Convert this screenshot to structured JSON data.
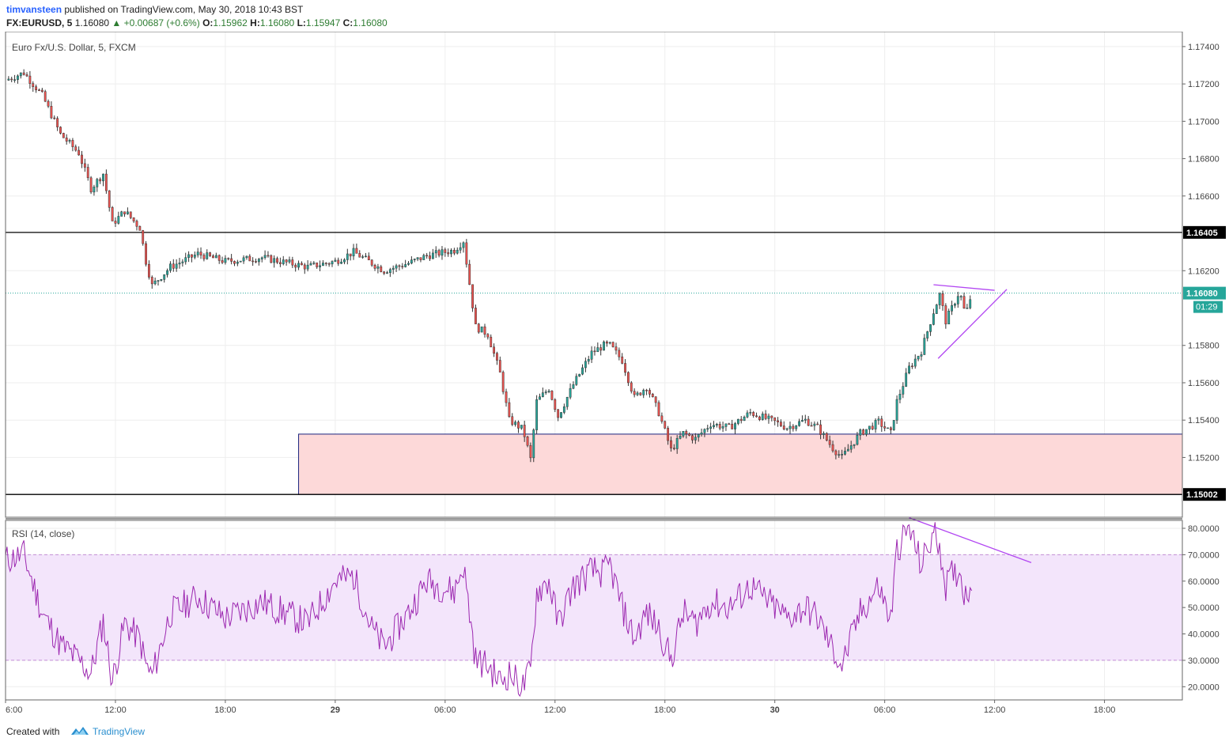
{
  "header": {
    "author": "timvansteen",
    "published": "published on TradingView.com, May 30, 2018 10:43 BST",
    "symbol": "FX:EURUSD, 5",
    "last": "1.16080",
    "change": "+0.00687 (+0.6%)",
    "o_label": "O:",
    "o_value": "1.15962",
    "h_label": "H:",
    "h_value": "1.16080",
    "l_label": "L:",
    "l_value": "1.15947",
    "c_label": "C:",
    "c_value": "1.16080"
  },
  "footer": {
    "created_with": "Created with",
    "brand": "TradingView"
  },
  "colors": {
    "up": "#26a69a",
    "down": "#ef5350",
    "wick": "#333333",
    "rsi": "#9c27b0",
    "rsi_band": "#f3e5fb",
    "zone": "#fdd9d9",
    "zone_border": "#1a237e",
    "trend": "#b246f2"
  },
  "chart_data": [
    {
      "type": "candlestick",
      "title": "Euro Fx/U.S. Dollar, 5, FXCM",
      "ylim": [
        1.1488,
        1.1748
      ],
      "y_ticks": [
        "1.17400",
        "1.17200",
        "1.17000",
        "1.16800",
        "1.16600",
        "1.16200",
        "1.15800",
        "1.15600",
        "1.15400",
        "1.15200"
      ],
      "horizontal_levels": [
        {
          "label": "1.16405",
          "value": 1.16405
        },
        {
          "label": "1.15002",
          "value": 1.15002
        }
      ],
      "last_price": {
        "label": "1.16080",
        "value": 1.1608,
        "countdown": "01:29"
      },
      "support_zone": {
        "from": "May 28 22:00",
        "y_low": 1.15002,
        "y_high": 1.15325
      },
      "triangle": {
        "upper": [
          [
            "May 30 08:40",
            1.16125
          ],
          [
            "May 30 12:00",
            1.16095
          ]
        ],
        "lower": [
          [
            "May 30 08:55",
            1.1573
          ],
          [
            "May 30 12:40",
            1.161
          ]
        ]
      },
      "anchors": [
        [
          "May 28 06:00",
          1.1722
        ],
        [
          "May 28 07:00",
          1.1726
        ],
        [
          "May 28 08:00",
          1.1714
        ],
        [
          "May 28 09:00",
          1.1693
        ],
        [
          "May 28 10:00",
          1.1683
        ],
        [
          "May 28 10:40",
          1.1664
        ],
        [
          "May 28 11:20",
          1.1672
        ],
        [
          "May 28 11:50",
          1.1645
        ],
        [
          "May 28 12:30",
          1.1652
        ],
        [
          "May 28 13:20",
          1.1643
        ],
        [
          "May 28 13:40",
          1.1625
        ],
        [
          "May 28 14:00",
          1.1612
        ],
        [
          "May 28 15:00",
          1.1622
        ],
        [
          "May 28 16:30",
          1.1629
        ],
        [
          "May 28 18:00",
          1.1625
        ],
        [
          "May 28 20:00",
          1.1627
        ],
        [
          "May 28 22:30",
          1.1622
        ],
        [
          "May 29 00:00",
          1.1625
        ],
        [
          "May 29 01:00",
          1.163
        ],
        [
          "May 29 02:00",
          1.1624
        ],
        [
          "May 29 02:40",
          1.162
        ],
        [
          "May 29 04:00",
          1.1624
        ],
        [
          "May 29 05:00",
          1.1628
        ],
        [
          "May 29 06:30",
          1.1631
        ],
        [
          "May 29 07:00",
          1.1636
        ],
        [
          "May 29 07:40",
          1.159
        ],
        [
          "May 29 08:20",
          1.1586
        ],
        [
          "May 29 09:00",
          1.1565
        ],
        [
          "May 29 09:30",
          1.154
        ],
        [
          "May 29 10:15",
          1.1535
        ],
        [
          "May 29 10:40",
          1.1519
        ],
        [
          "May 29 11:00",
          1.155
        ],
        [
          "May 29 11:40",
          1.1557
        ],
        [
          "May 29 12:10",
          1.1542
        ],
        [
          "May 29 13:00",
          1.1559
        ],
        [
          "May 29 14:00",
          1.1576
        ],
        [
          "May 29 14:40",
          1.158
        ],
        [
          "May 29 15:00",
          1.158
        ],
        [
          "May 29 15:40",
          1.1572
        ],
        [
          "May 29 16:20",
          1.1552
        ],
        [
          "May 29 17:00",
          1.1558
        ],
        [
          "May 29 17:40",
          1.1544
        ],
        [
          "May 29 18:20",
          1.1524
        ],
        [
          "May 29 19:00",
          1.1533
        ],
        [
          "May 29 19:40",
          1.153
        ],
        [
          "May 29 20:30",
          1.1538
        ],
        [
          "May 29 21:30",
          1.1536
        ],
        [
          "May 29 22:40",
          1.1544
        ],
        [
          "May 30 00:00",
          1.1539
        ],
        [
          "May 30 00:40",
          1.1536
        ],
        [
          "May 30 01:40",
          1.154
        ],
        [
          "May 30 02:20",
          1.1536
        ],
        [
          "May 30 03:10",
          1.1525
        ],
        [
          "May 30 03:40",
          1.152
        ],
        [
          "May 30 04:40",
          1.1533
        ],
        [
          "May 30 05:40",
          1.1539
        ],
        [
          "May 30 06:20",
          1.1533
        ],
        [
          "May 30 06:40",
          1.155
        ],
        [
          "May 30 07:20",
          1.1568
        ],
        [
          "May 30 08:00",
          1.1577
        ],
        [
          "May 30 08:40",
          1.1598
        ],
        [
          "May 30 09:00",
          1.1607
        ],
        [
          "May 30 09:20",
          1.1593
        ],
        [
          "May 30 09:40",
          1.16
        ],
        [
          "May 30 10:05",
          1.1609
        ],
        [
          "May 30 10:25",
          1.1596
        ],
        [
          "May 30 10:45",
          1.1608
        ]
      ]
    },
    {
      "type": "line",
      "title": "RSI (14, close)",
      "ylim": [
        15,
        83
      ],
      "y_ticks": [
        "80.0000",
        "70.0000",
        "60.0000",
        "50.0000",
        "40.0000",
        "30.0000",
        "20.0000"
      ],
      "bands": [
        30,
        70
      ],
      "divergence_line": [
        [
          "May 30 07:20",
          84
        ],
        [
          "May 30 14:00",
          67
        ]
      ],
      "anchors": [
        [
          "May 28 06:00",
          68
        ],
        [
          "May 28 07:00",
          70
        ],
        [
          "May 28 08:00",
          48
        ],
        [
          "May 28 09:00",
          36
        ],
        [
          "May 28 10:00",
          30
        ],
        [
          "May 28 10:40",
          25
        ],
        [
          "May 28 11:20",
          45
        ],
        [
          "May 28 11:50",
          22
        ],
        [
          "May 28 12:30",
          44
        ],
        [
          "May 28 13:20",
          38
        ],
        [
          "May 28 13:40",
          28
        ],
        [
          "May 28 14:00",
          24
        ],
        [
          "May 28 15:00",
          48
        ],
        [
          "May 28 16:30",
          54
        ],
        [
          "May 28 18:00",
          46
        ],
        [
          "May 28 20:00",
          52
        ],
        [
          "May 28 22:30",
          44
        ],
        [
          "May 29 00:00",
          60
        ],
        [
          "May 29 01:00",
          62
        ],
        [
          "May 29 02:00",
          42
        ],
        [
          "May 29 02:40",
          35
        ],
        [
          "May 29 04:00",
          48
        ],
        [
          "May 29 05:00",
          60
        ],
        [
          "May 29 06:30",
          56
        ],
        [
          "May 29 07:00",
          66
        ],
        [
          "May 29 07:40",
          30
        ],
        [
          "May 29 08:20",
          28
        ],
        [
          "May 29 09:00",
          22
        ],
        [
          "May 29 09:30",
          25
        ],
        [
          "May 29 10:15",
          20
        ],
        [
          "May 29 10:40",
          26
        ],
        [
          "May 29 11:00",
          56
        ],
        [
          "May 29 11:40",
          60
        ],
        [
          "May 29 12:10",
          44
        ],
        [
          "May 29 13:00",
          58
        ],
        [
          "May 29 14:00",
          64
        ],
        [
          "May 29 14:40",
          63
        ],
        [
          "May 29 15:00",
          66
        ],
        [
          "May 29 15:40",
          50
        ],
        [
          "May 29 16:20",
          38
        ],
        [
          "May 29 17:00",
          48
        ],
        [
          "May 29 17:40",
          42
        ],
        [
          "May 29 18:20",
          30
        ],
        [
          "May 29 19:00",
          48
        ],
        [
          "May 29 19:40",
          44
        ],
        [
          "May 29 20:30",
          52
        ],
        [
          "May 29 21:30",
          50
        ],
        [
          "May 29 22:40",
          58
        ],
        [
          "May 30 00:00",
          50
        ],
        [
          "May 30 00:40",
          46
        ],
        [
          "May 30 01:40",
          50
        ],
        [
          "May 30 02:20",
          46
        ],
        [
          "May 30 03:10",
          34
        ],
        [
          "May 30 03:40",
          28
        ],
        [
          "May 30 04:40",
          48
        ],
        [
          "May 30 05:40",
          58
        ],
        [
          "May 30 06:20",
          45
        ],
        [
          "May 30 06:40",
          72
        ],
        [
          "May 30 07:20",
          80
        ],
        [
          "May 30 08:00",
          66
        ],
        [
          "May 30 08:40",
          78
        ],
        [
          "May 30 09:00",
          74
        ],
        [
          "May 30 09:20",
          58
        ],
        [
          "May 30 09:40",
          62
        ],
        [
          "May 30 10:05",
          64
        ],
        [
          "May 30 10:25",
          54
        ],
        [
          "May 30 10:45",
          60
        ]
      ]
    }
  ],
  "x_axis": {
    "range": [
      "May 28 06:00",
      "May 30 22:15"
    ],
    "ticks": [
      {
        "label": "6:00",
        "time": "May 28 06:00"
      },
      {
        "label": "12:00",
        "time": "May 28 12:00"
      },
      {
        "label": "18:00",
        "time": "May 28 18:00"
      },
      {
        "label": "29",
        "time": "May 29 00:00"
      },
      {
        "label": "06:00",
        "time": "May 29 06:00"
      },
      {
        "label": "12:00",
        "time": "May 29 12:00"
      },
      {
        "label": "18:00",
        "time": "May 29 18:00"
      },
      {
        "label": "30",
        "time": "May 30 00:00"
      },
      {
        "label": "06:00",
        "time": "May 30 06:00"
      },
      {
        "label": "12:00",
        "time": "May 30 12:00"
      },
      {
        "label": "18:00",
        "time": "May 30 18:00"
      }
    ]
  }
}
